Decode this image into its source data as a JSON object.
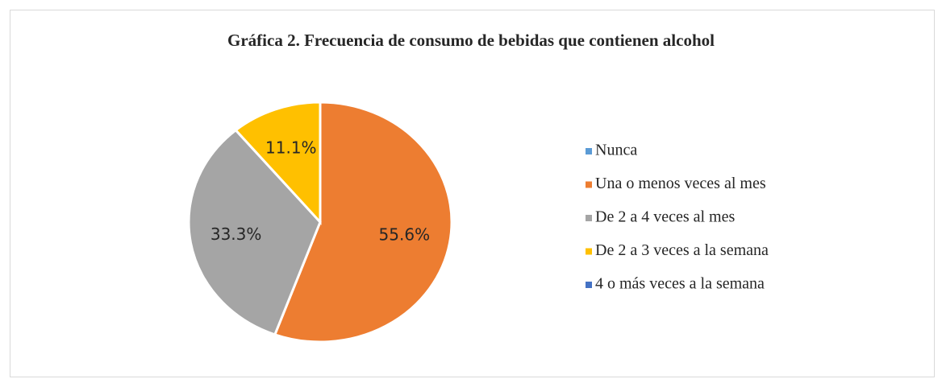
{
  "chart_data": {
    "type": "pie",
    "title": "Gráfica 2. Frecuencia de consumo de bebidas que contienen alcohol",
    "categories": [
      "Nunca",
      "Una o menos veces al mes",
      "De 2 a 4 veces al mes",
      "De 2 a 3 veces a la semana",
      "4 o más veces a la semana"
    ],
    "values": [
      0,
      55.6,
      33.3,
      11.1,
      0
    ],
    "value_labels": [
      null,
      "55.6%",
      "33.3%",
      "11.1%",
      null
    ],
    "colors": [
      "#5b9bd5",
      "#ed7d31",
      "#a5a5a5",
      "#ffc000",
      "#4472c4"
    ],
    "legend": "right"
  }
}
